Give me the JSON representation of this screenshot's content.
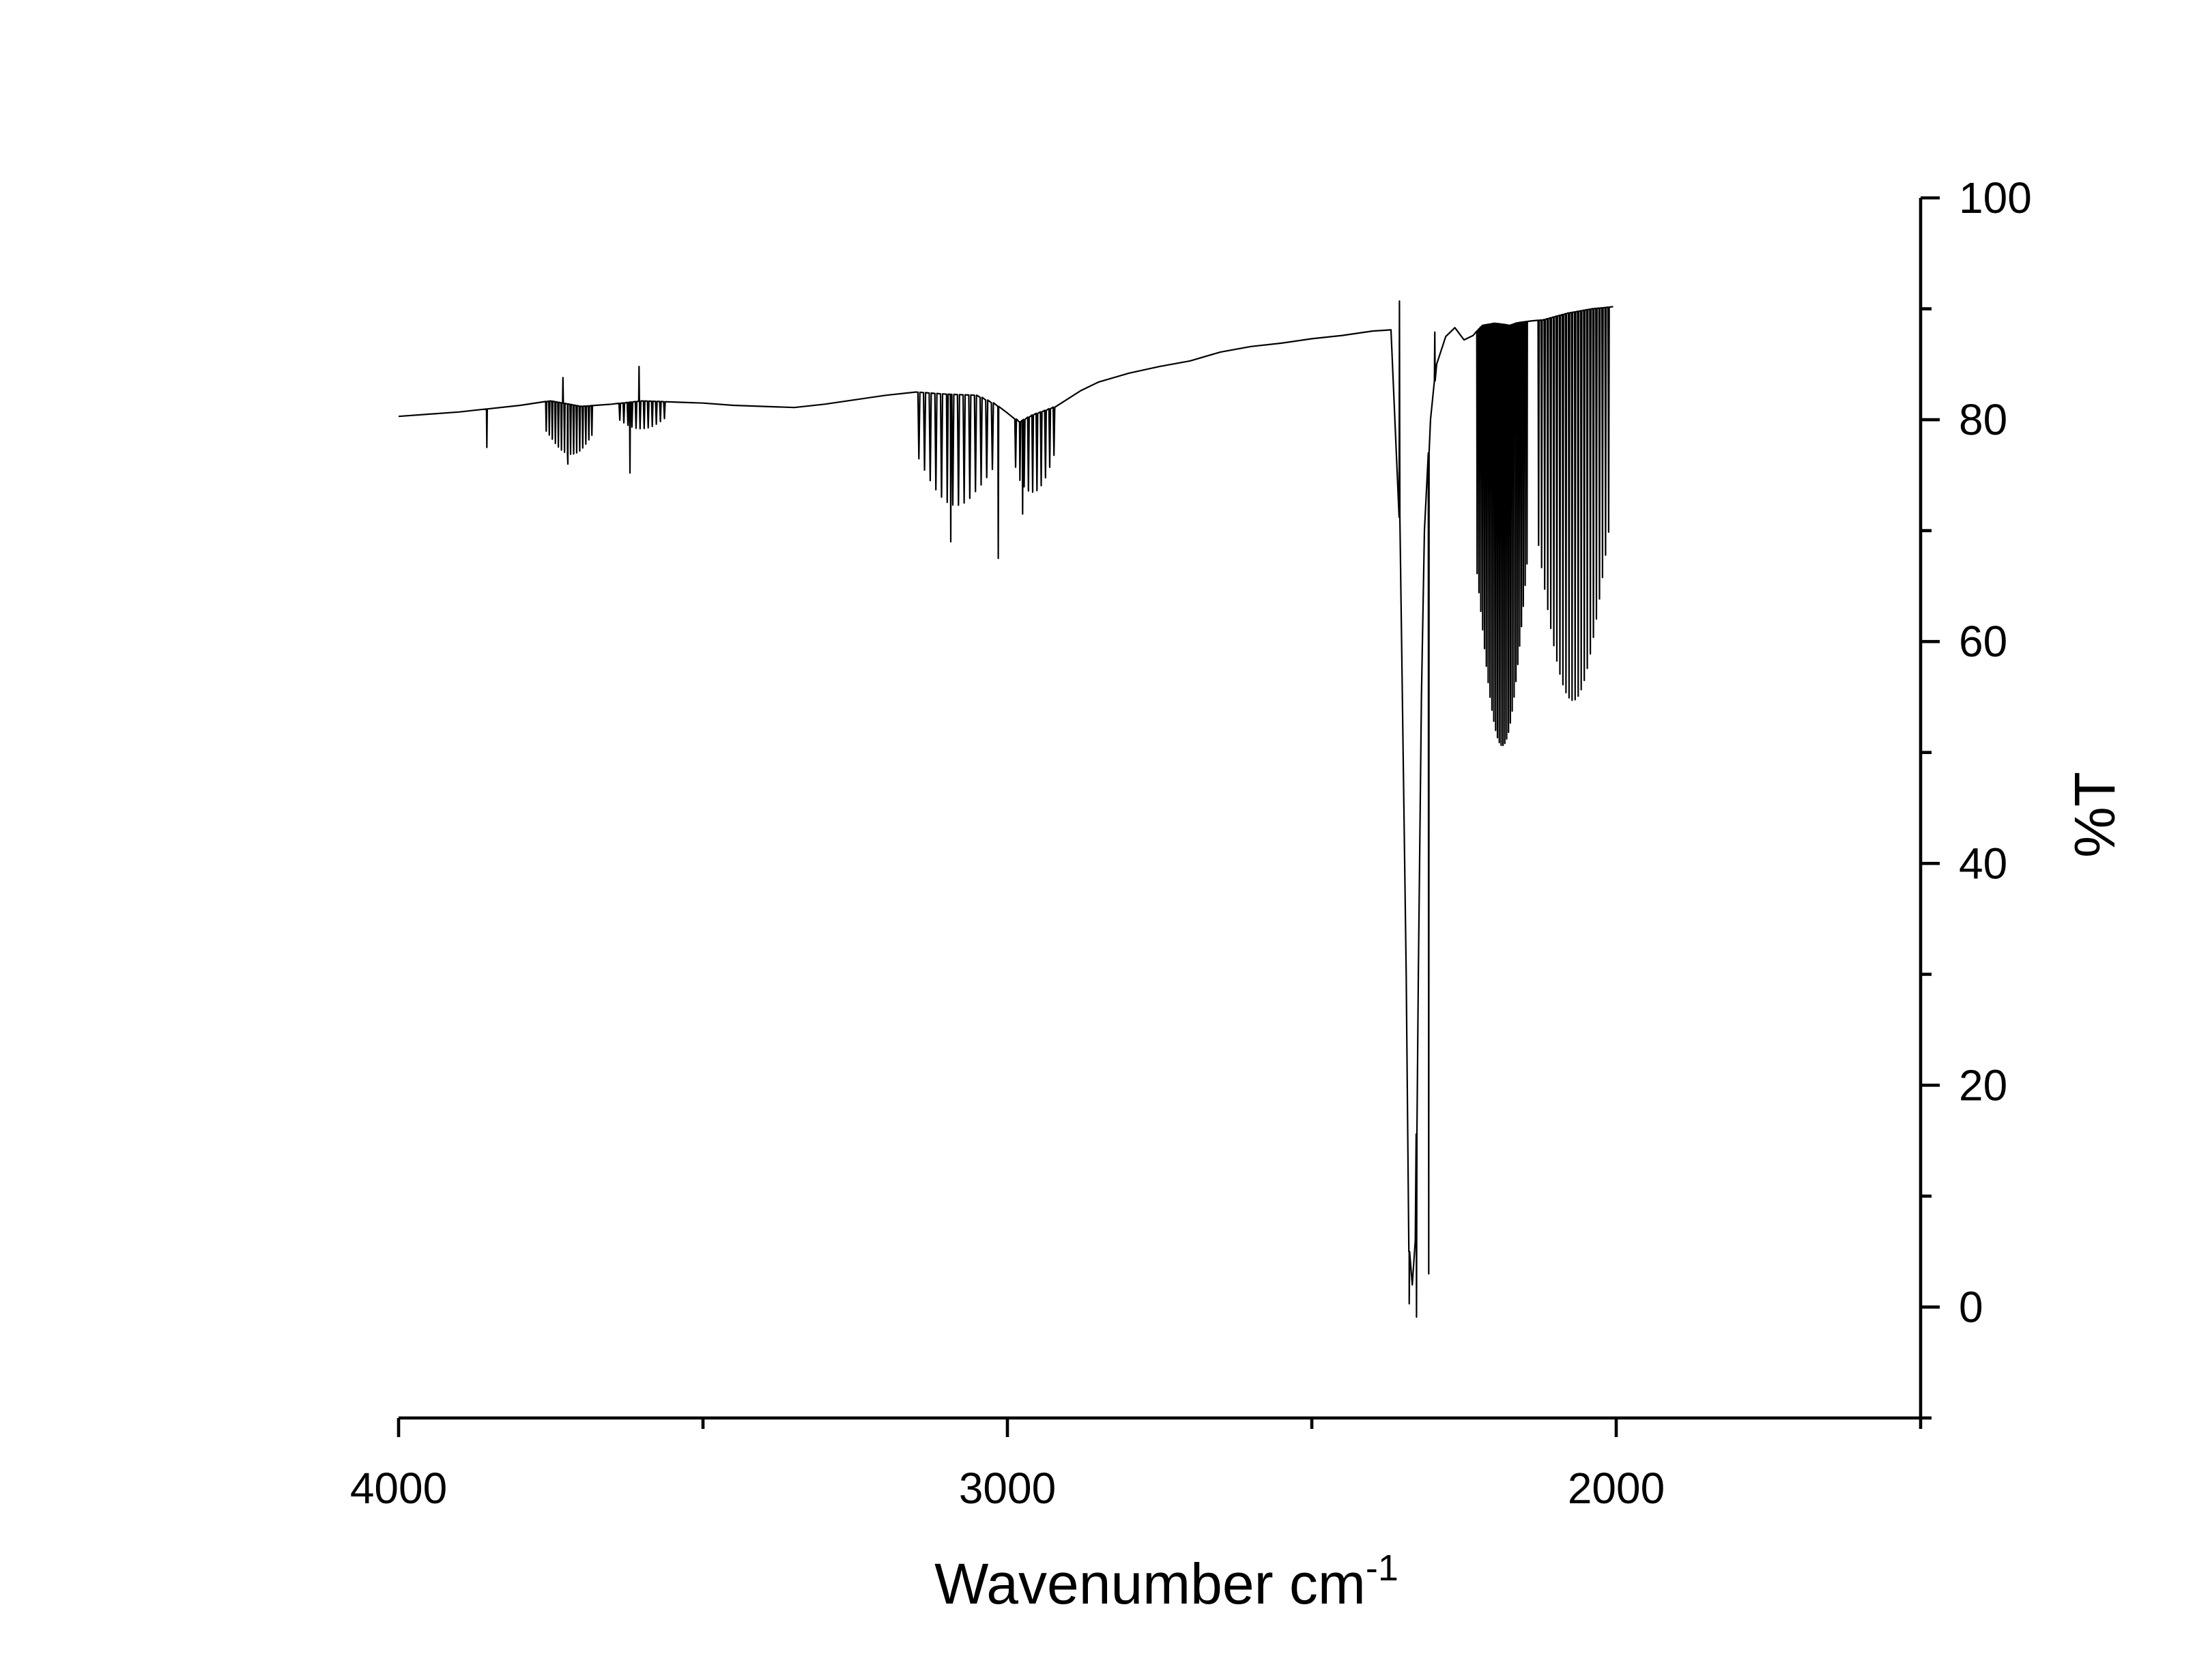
{
  "chart_data": {
    "type": "line",
    "title": "",
    "xlabel": "Wavenumber cm",
    "xlabel_superscript": "-1",
    "ylabel": "%T",
    "xlim": [
      4000,
      1500
    ],
    "ylim": [
      -10,
      100
    ],
    "x_axis_reversed": true,
    "y_axis_side": "right",
    "grid": false,
    "legend": "none",
    "line_color": "#000000",
    "x_ticks": [
      {
        "value": 4000,
        "label": "4000"
      },
      {
        "value": 3000,
        "label": "3000"
      },
      {
        "value": 2000,
        "label": "2000"
      }
    ],
    "x_minor_ticks": [
      3500,
      2500,
      1500
    ],
    "y_ticks": [
      {
        "value": 0,
        "label": "0"
      },
      {
        "value": 20,
        "label": "20"
      },
      {
        "value": 40,
        "label": "40"
      },
      {
        "value": 60,
        "label": "60"
      },
      {
        "value": 80,
        "label": "80"
      },
      {
        "value": 100,
        "label": "100"
      }
    ],
    "y_minor_ticks": [
      -10,
      10,
      30,
      50,
      70,
      90
    ],
    "series": [
      {
        "baseline": [
          [
            4000,
            80.3
          ],
          [
            3900,
            80.7
          ],
          [
            3800,
            81.3
          ],
          [
            3750,
            81.7
          ],
          [
            3700,
            81.2
          ],
          [
            3650,
            81.4
          ],
          [
            3600,
            81.7
          ],
          [
            3550,
            81.6
          ],
          [
            3500,
            81.5
          ],
          [
            3450,
            81.3
          ],
          [
            3400,
            81.2
          ],
          [
            3350,
            81.1
          ],
          [
            3300,
            81.4
          ],
          [
            3250,
            81.8
          ],
          [
            3200,
            82.2
          ],
          [
            3150,
            82.5
          ],
          [
            3100,
            82.3
          ],
          [
            3050,
            82.2
          ],
          [
            3020,
            81.4
          ],
          [
            3000,
            80.6
          ],
          [
            2980,
            79.8
          ],
          [
            2960,
            80.4
          ],
          [
            2920,
            81.2
          ],
          [
            2880,
            82.6
          ],
          [
            2850,
            83.4
          ],
          [
            2800,
            84.2
          ],
          [
            2750,
            84.8
          ],
          [
            2700,
            85.3
          ],
          [
            2650,
            86.1
          ],
          [
            2600,
            86.6
          ],
          [
            2550,
            86.9
          ],
          [
            2500,
            87.3
          ],
          [
            2450,
            87.6
          ],
          [
            2400,
            88.0
          ],
          [
            2370,
            88.1
          ],
          [
            2355,
            70.0
          ],
          [
            2345,
            30.0
          ],
          [
            2340,
            5.0
          ],
          [
            2335,
            2.0
          ],
          [
            2330,
            6.0
          ],
          [
            2325,
            30.0
          ],
          [
            2320,
            55.0
          ],
          [
            2315,
            70.0
          ],
          [
            2305,
            80.0
          ],
          [
            2295,
            85.0
          ],
          [
            2280,
            87.5
          ],
          [
            2265,
            88.3
          ],
          [
            2250,
            87.2
          ],
          [
            2235,
            87.6
          ],
          [
            2220,
            88.5
          ],
          [
            2200,
            88.7
          ],
          [
            2185,
            88.6
          ],
          [
            2175,
            88.5
          ],
          [
            2165,
            88.7
          ],
          [
            2155,
            88.8
          ],
          [
            2140,
            88.9
          ],
          [
            2120,
            89.0
          ],
          [
            2100,
            89.3
          ],
          [
            2080,
            89.6
          ],
          [
            2060,
            89.8
          ],
          [
            2040,
            90.0
          ],
          [
            2020,
            90.1
          ],
          [
            2005,
            90.2
          ]
        ],
        "bands": [
          {
            "from": 3760,
            "to": 3680,
            "count": 16,
            "depth": 4.5
          },
          {
            "from": 3640,
            "to": 3560,
            "count": 12,
            "depth": 2.5
          },
          {
            "from": 3150,
            "to": 3020,
            "count": 14,
            "depth": 10.0
          },
          {
            "from": 2990,
            "to": 2920,
            "count": 10,
            "depth": 7.0
          },
          {
            "from": 2230,
            "to": 2145,
            "count": 28,
            "depth": 38.0
          },
          {
            "from": 2130,
            "to": 2010,
            "count": 24,
            "depth": 35.0
          }
        ],
        "sharp_lines": [
          [
            3855,
            77.5
          ],
          [
            3730,
            83.8
          ],
          [
            3722,
            76.0
          ],
          [
            3620,
            75.2
          ],
          [
            3605,
            84.8
          ],
          [
            3093,
            69.0
          ],
          [
            3015,
            67.5
          ],
          [
            2975,
            71.5
          ],
          [
            2340,
            0.3
          ],
          [
            2328,
            -0.9
          ],
          [
            2308,
            3.0
          ],
          [
            2356,
            90.7
          ],
          [
            2298,
            87.9
          ]
        ]
      }
    ]
  }
}
